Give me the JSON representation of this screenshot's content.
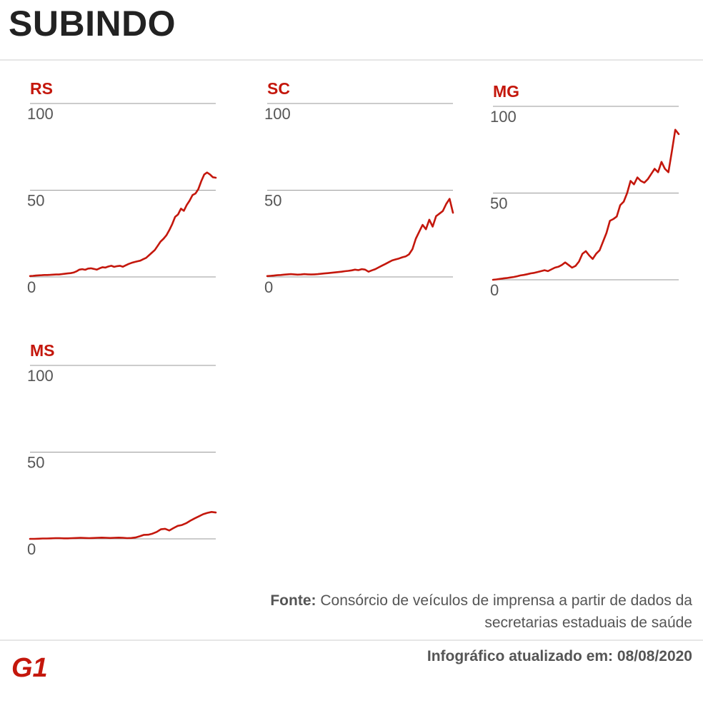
{
  "title": "SUBINDO",
  "source_label": "Fonte:",
  "source_text": "Consórcio de veículos de imprensa a partir de dados da secretarias estaduais de saúde",
  "updated": "Infográfico atualizado em: 08/08/2020",
  "logo_text": "G1",
  "colors": {
    "line": "#c4170c",
    "grid": "#9a9a9a",
    "text": "#555555",
    "title": "#222222"
  },
  "chart_data": [
    {
      "type": "line",
      "title": "RS",
      "ylim": [
        0,
        100
      ],
      "yticks": [
        100,
        50,
        0
      ],
      "values": [
        0.5,
        0.6,
        0.8,
        0.9,
        1.0,
        1.1,
        1.1,
        1.2,
        1.3,
        1.4,
        1.4,
        1.6,
        1.8,
        2.0,
        2.2,
        2.5,
        3.2,
        4.2,
        4.5,
        4.1,
        4.8,
        5.0,
        4.6,
        4.2,
        5.0,
        5.6,
        5.4,
        6.0,
        6.4,
        5.8,
        6.2,
        6.4,
        5.9,
        6.7,
        7.5,
        8.1,
        8.6,
        9.0,
        9.4,
        10.2,
        11.0,
        12.5,
        14.0,
        15.5,
        18.0,
        20.4,
        22.0,
        24.0,
        27.0,
        30.5,
        34.6,
        36.0,
        39.4,
        38.1,
        41.5,
        44.0,
        47.2,
        48.1,
        50.6,
        55.2,
        59.0,
        60.2,
        59.1,
        57.5,
        57.2
      ]
    },
    {
      "type": "line",
      "title": "SC",
      "ylim": [
        0,
        100
      ],
      "yticks": [
        100,
        50,
        0
      ],
      "values": [
        0.5,
        0.6,
        0.8,
        1.0,
        1.1,
        1.3,
        1.5,
        1.6,
        1.5,
        1.3,
        1.4,
        1.6,
        1.5,
        1.4,
        1.5,
        1.6,
        1.8,
        2.0,
        2.2,
        2.4,
        2.6,
        2.8,
        3.0,
        3.3,
        3.5,
        3.8,
        4.2,
        3.9,
        4.5,
        4.2,
        3.0,
        3.8,
        4.5,
        5.5,
        6.5,
        7.5,
        8.5,
        9.5,
        10.1,
        10.6,
        11.3,
        11.8,
        13.0,
        16.0,
        22.0,
        26.0,
        30.0,
        27.5,
        33.0,
        29.0,
        35.0,
        36.5,
        38.0,
        42.0,
        45.0,
        37.0
      ]
    },
    {
      "type": "line",
      "title": "MG",
      "ylim": [
        0,
        100
      ],
      "yticks": [
        100,
        50,
        0
      ],
      "values": [
        0.0,
        0.2,
        0.5,
        0.8,
        1.0,
        1.3,
        1.6,
        2.0,
        2.5,
        2.8,
        3.2,
        3.7,
        4.0,
        4.5,
        5.0,
        5.5,
        5.0,
        6.0,
        7.0,
        7.5,
        8.5,
        10.0,
        8.5,
        7.0,
        8.0,
        10.5,
        15.0,
        16.5,
        14.0,
        12.0,
        15.0,
        17.0,
        22.0,
        27.0,
        34.0,
        35.0,
        36.5,
        43.0,
        45.0,
        50.0,
        57.0,
        55.0,
        59.0,
        57.0,
        56.0,
        58.0,
        61.0,
        64.0,
        62.0,
        68.0,
        64.0,
        62.0,
        74.0,
        86.5,
        84.0
      ]
    },
    {
      "type": "line",
      "title": "MS",
      "ylim": [
        0,
        100
      ],
      "yticks": [
        100,
        50,
        0
      ],
      "values": [
        0.0,
        0.0,
        0.1,
        0.2,
        0.2,
        0.3,
        0.4,
        0.4,
        0.3,
        0.3,
        0.4,
        0.5,
        0.6,
        0.5,
        0.4,
        0.5,
        0.6,
        0.7,
        0.6,
        0.5,
        0.6,
        0.7,
        0.6,
        0.4,
        0.5,
        0.8,
        1.5,
        2.3,
        2.4,
        3.0,
        4.0,
        5.5,
        5.8,
        4.8,
        6.2,
        7.5,
        8.0,
        9.0,
        10.5,
        11.8,
        13.0,
        14.2,
        15.0,
        15.5,
        15.2
      ]
    }
  ]
}
